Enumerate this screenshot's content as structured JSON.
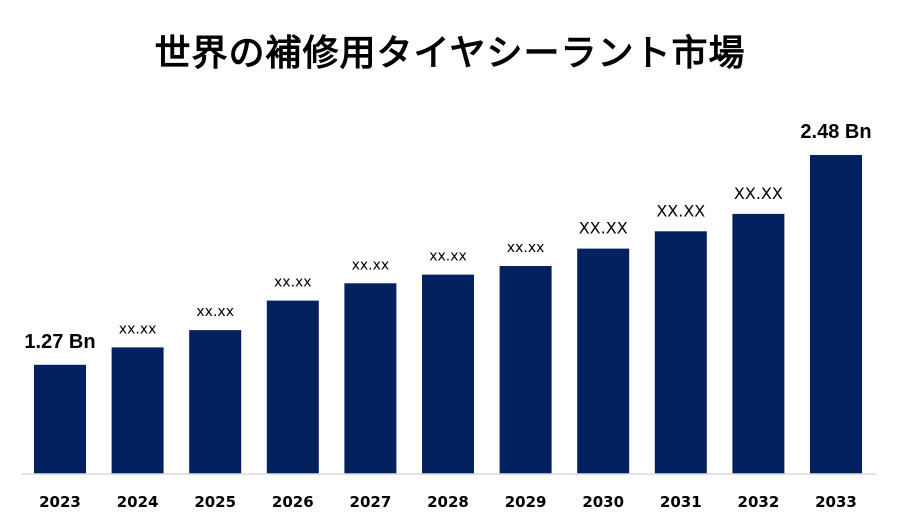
{
  "chart_data": {
    "type": "bar",
    "title": "世界の補修用タイヤシーラント市場",
    "xlabel": "",
    "ylabel": "",
    "categories": [
      "2023",
      "2024",
      "2025",
      "2026",
      "2027",
      "2028",
      "2029",
      "2030",
      "2031",
      "2032",
      "2033"
    ],
    "values": [
      1.27,
      1.37,
      1.47,
      1.64,
      1.74,
      1.79,
      1.84,
      1.94,
      2.04,
      2.14,
      2.48
    ],
    "data_labels": [
      "1.27 Bn",
      "xx.xx",
      "xx.xx",
      "xx.xx",
      "xx.xx",
      "xx.xx",
      "xx.xx",
      "XX.XX",
      "XX.XX",
      "XX.XX",
      "2.48 Bn"
    ],
    "ylim": [
      0.64,
      2.48
    ],
    "grid": false,
    "legend": "none",
    "bar_color": "#03215F",
    "axis_color": "#D9D9D9"
  }
}
